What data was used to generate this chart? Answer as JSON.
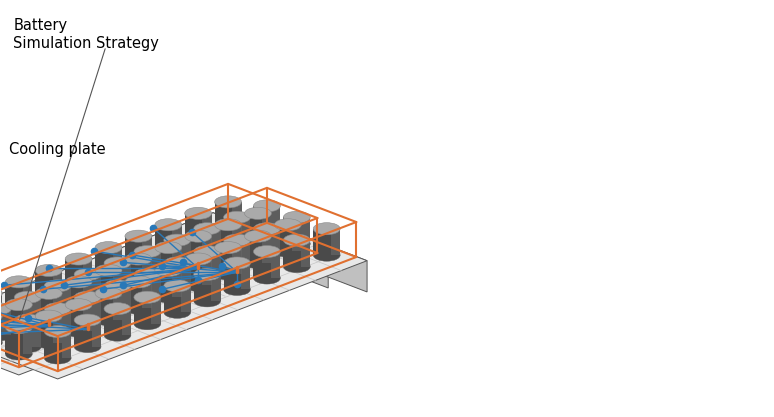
{
  "bg_color": "#ffffff",
  "label1": "Battery\nSimulation Strategy",
  "label2": "Cooling plate",
  "orange_color": "#E07030",
  "blue_color": "#2878B8",
  "cyl_body_dark": "#4a4a4a",
  "cyl_body_mid": "#666666",
  "cyl_top_light": "#aaaaaa",
  "cyl_top_mid": "#888888",
  "plate_top": "#e8e8e8",
  "plate_front": "#d0d0d0",
  "plate_right": "#c0c0c0",
  "plate_edge": "#555555",
  "grid_color": "#c5c5c5",
  "annot_color": "#555555",
  "n_cols": 10,
  "n_rows": 3,
  "assemblies": [
    {
      "ox": 0.175,
      "oy": 0.62
    },
    {
      "ox": 0.565,
      "oy": 0.58
    }
  ]
}
